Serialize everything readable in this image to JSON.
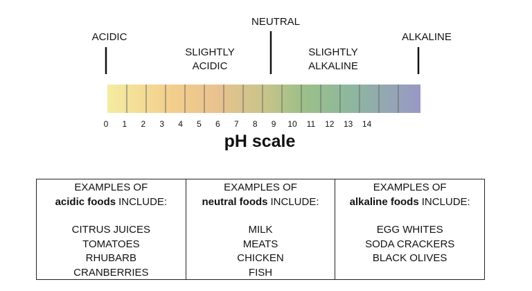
{
  "labels": {
    "neutral": "NEUTRAL",
    "acidic": "ACIDIC",
    "slightly_acidic": [
      "SLIGHTLY",
      "ACIDIC"
    ],
    "slightly_alkaline": [
      "SLIGHTLY",
      "ALKALINE"
    ],
    "alkaline": "ALKALINE"
  },
  "scale": {
    "ticks": [
      0,
      1,
      2,
      3,
      4,
      5,
      6,
      7,
      8,
      9,
      10,
      11,
      12,
      13,
      14
    ],
    "title": "pH scale"
  },
  "table": {
    "columns": [
      {
        "intro": "EXAMPLES OF",
        "bold": "acidic foods",
        "rest": "INCLUDE:",
        "items": [
          "CITRUS JUICES",
          "TOMATOES",
          "RHUBARB",
          "CRANBERRIES"
        ]
      },
      {
        "intro": "EXAMPLES OF",
        "bold": "neutral foods",
        "rest": "INCLUDE:",
        "items": [
          "MILK",
          "MEATS",
          "CHICKEN",
          "FISH"
        ]
      },
      {
        "intro": "EXAMPLES OF",
        "bold": "alkaline foods",
        "rest": "INCLUDE:",
        "items": [
          "EGG WHITES",
          "SODA CRACKERS",
          "BLACK OLIVES"
        ]
      }
    ]
  }
}
